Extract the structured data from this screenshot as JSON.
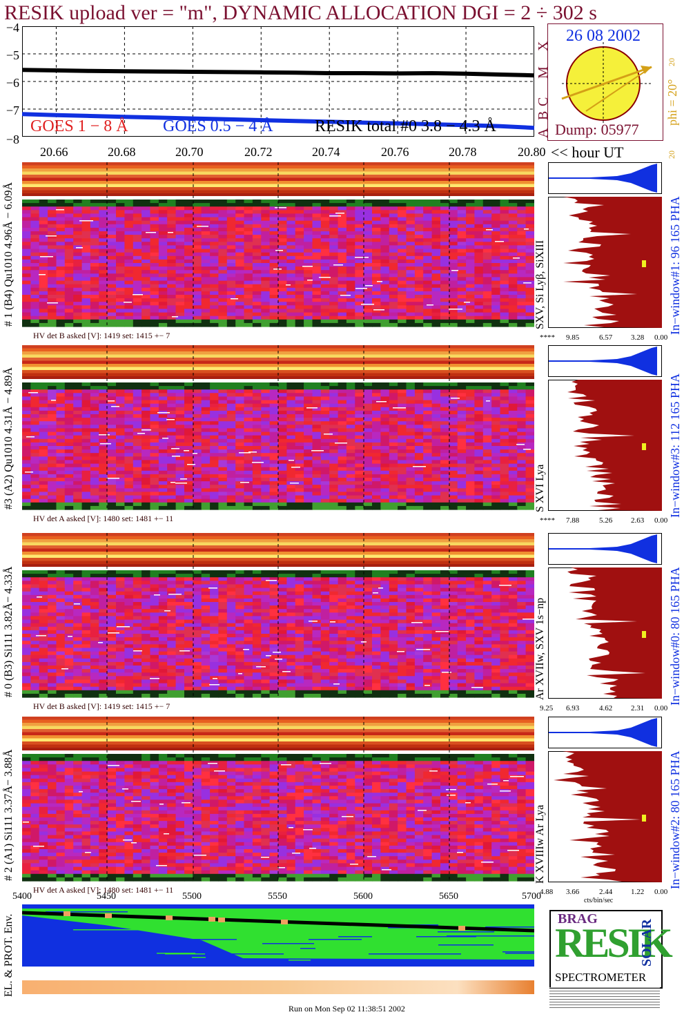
{
  "title": "RESIK upload ver = \"m\", DYNAMIC ALLOCATION  DGI =   2 ÷ 302 s",
  "goes_panel": {
    "y_ticks": [
      "−4",
      "−5",
      "−6",
      "−7",
      "−8"
    ],
    "legend": {
      "goes18": "GOES 1 − 8 Å",
      "goes054": "GOES 0.5 − 4 Å",
      "resik_total": "RESIK total #0  3.8 − 4.3 Å"
    },
    "class_letters": [
      "X",
      "M",
      "C",
      "B",
      "A"
    ],
    "colors": {
      "goes18": "#e02020",
      "goes054": "#1030e0",
      "resik_total": "#000000"
    }
  },
  "sun_panel": {
    "date": "26 08 2002",
    "dump": "Dump: 05977",
    "phi_label": "phi = 20°",
    "scale_top": "20",
    "scale_bottom": "20"
  },
  "time_axis": {
    "ticks": [
      "20.66",
      "20.68",
      "20.70",
      "20.72",
      "20.74",
      "20.76",
      "20.78",
      "20.80"
    ],
    "unit_label": "<< hour UT"
  },
  "detectors": [
    {
      "label": "# 1 (B4) Qu1010 4.96Å − 6.09Å",
      "hv": "HV det B asked [V]:  1419 set:  1415 +−    7",
      "lines": "SXV, Si Lyβ, SiXIII",
      "window": "In−window#1:   96 165 PHA",
      "ticks": [
        "****",
        "9.85",
        "6.57",
        "3.28",
        "0.00"
      ]
    },
    {
      "label": "#3 (A2) Qu1010  4.31Å − 4.89Å",
      "hv": "HV det A asked [V]:  1480 set:  1481 +−    11",
      "lines": "S XVI Lya",
      "window": "In−window#3:  112 165 PHA",
      "ticks": [
        "****",
        "7.88",
        "5.26",
        "2.63",
        "0.00"
      ]
    },
    {
      "label": "# 0 (B3) Si111  3.82Å− 4.33Å",
      "hv": "HV det B asked [V]:  1419 set:  1415 +−    7",
      "lines": "Ar XVIIw,  SXV 1s−np",
      "window": "In−window#0:   80 165 PHA",
      "ticks": [
        "9.25",
        "6.93",
        "4.62",
        "2.31",
        "0.00"
      ]
    },
    {
      "label": "# 2 (A1) Si111  3.37Å− 3.88Å",
      "hv": "HV det A asked [V]:  1480 set:  1481 +−    11",
      "lines": "K XVIIIw  Ar Lya",
      "window": "In−window#2:   80 165 PHA",
      "ticks": [
        "4.88",
        "3.66",
        "2.44",
        "1.22",
        "0.00"
      ],
      "unit": "cts/bin/sec"
    }
  ],
  "env_panel": {
    "label": "EL. & PROT. Env.",
    "x_ticks": [
      "5400",
      "5450",
      "5500",
      "5550",
      "5600",
      "5650",
      "5700"
    ]
  },
  "logo": {
    "text_main": "RESIK",
    "text_bottom": "SPECTROMETER",
    "text_side": "SOLAR",
    "text_top": "BRAG"
  },
  "footer": "Run on Mon Sep 02 11:38:51 2002",
  "chart_data": {
    "type": "line",
    "title": "RESIK upload ver = \"m\", DYNAMIC ALLOCATION  DGI =   2 ÷ 302 s",
    "x": [
      20.65,
      20.66,
      20.67,
      20.68,
      20.69,
      20.7,
      20.71,
      20.72,
      20.73,
      20.74,
      20.75,
      20.76,
      20.77,
      20.78,
      20.79,
      20.8
    ],
    "xlim": [
      20.65,
      20.8
    ],
    "ylim": [
      -8,
      -4
    ],
    "yscale": "log10",
    "series": [
      {
        "name": "GOES 1 − 8 Å",
        "color": "#e02020",
        "values": [
          -5.6,
          -5.62,
          -5.63,
          -5.64,
          -5.65,
          -5.66,
          -5.67,
          -5.68,
          -5.69,
          -5.7,
          -5.71,
          -5.72,
          -5.73,
          -5.74,
          -5.76,
          -5.8
        ]
      },
      {
        "name": "GOES 0.5 − 4 Å",
        "color": "#1030e0",
        "values": [
          -7.18,
          -7.22,
          -7.25,
          -7.28,
          -7.31,
          -7.34,
          -7.37,
          -7.4,
          -7.43,
          -7.46,
          -7.49,
          -7.52,
          -7.55,
          -7.58,
          -7.62,
          -7.68
        ]
      },
      {
        "name": "RESIK total #0  3.8 − 4.3 Å",
        "color": "#000000",
        "values": [
          -5.58,
          -5.6,
          -5.62,
          -5.63,
          -5.64,
          -5.65,
          -5.66,
          -5.67,
          -5.68,
          -5.7,
          -5.7,
          -5.71,
          -5.7,
          -5.72,
          -5.75,
          -5.78
        ]
      }
    ]
  }
}
